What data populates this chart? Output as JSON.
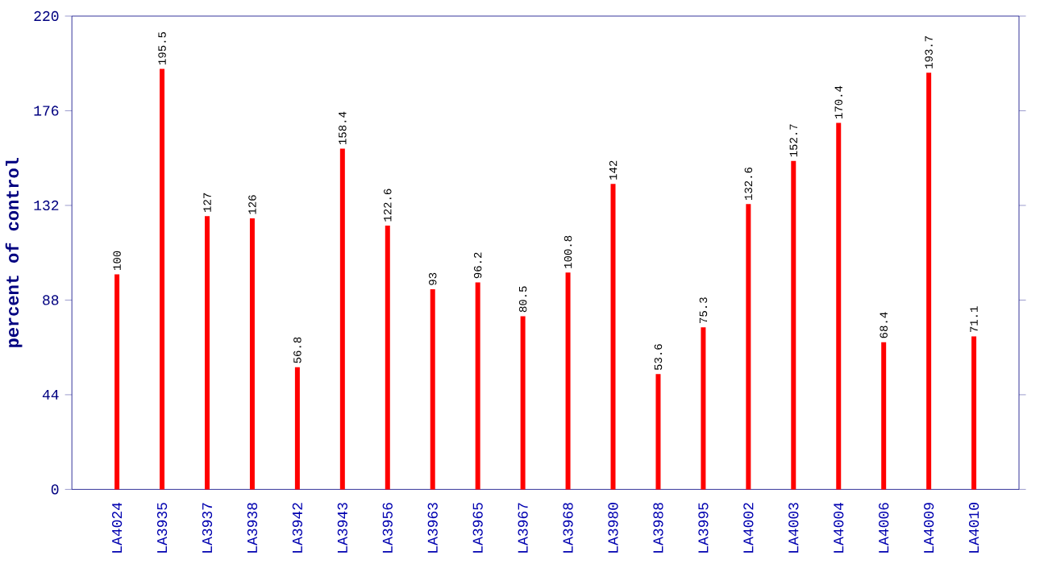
{
  "chart_data": {
    "type": "bar",
    "ylabel": "percent of control",
    "categories": [
      "LA4024",
      "LA3935",
      "LA3937",
      "LA3938",
      "LA3942",
      "LA3943",
      "LA3956",
      "LA3963",
      "LA3965",
      "LA3967",
      "LA3968",
      "LA3980",
      "LA3988",
      "LA3995",
      "LA4002",
      "LA4003",
      "LA4004",
      "LA4006",
      "LA4009",
      "LA4010"
    ],
    "values": [
      100,
      195.5,
      127,
      126,
      56.8,
      158.4,
      122.6,
      93,
      96.2,
      80.5,
      100.8,
      142,
      53.6,
      75.3,
      132.6,
      152.7,
      170.4,
      68.4,
      193.7,
      71.1
    ],
    "color": "#ff0000",
    "ylim": [
      0,
      220
    ],
    "yticks": [
      0,
      44,
      88,
      132,
      176,
      220
    ],
    "data_labels": true
  }
}
